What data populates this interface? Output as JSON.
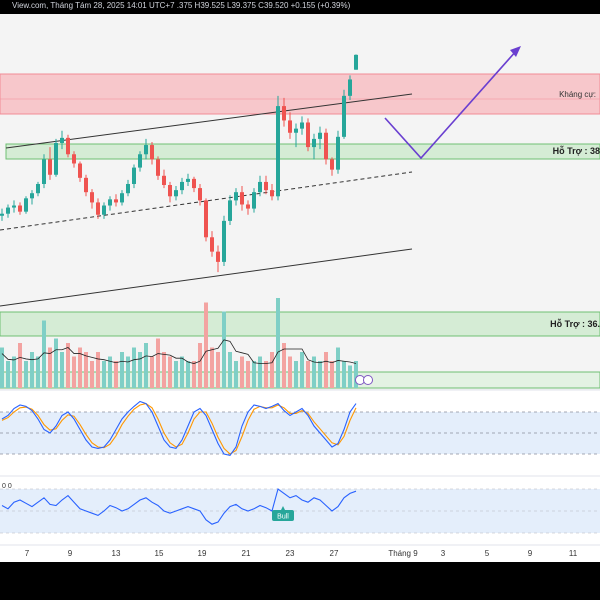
{
  "header": {
    "source_date": "View.com, Tháng Tám 28, 2025 14:01 UTC+7",
    "ohlc": {
      "o": ".375",
      "h": "H39.525",
      "l": "L39.375",
      "c": "C39.520",
      "chg": "+0.155 (+0.39%)"
    }
  },
  "levels": {
    "resistance_label": "Kháng cự:",
    "support1_label": "Hỗ Trợ : 38",
    "support2_label": "Hỗ Trợ : 36."
  },
  "badges": {
    "bull": "Bull",
    "oscillator_value": "0 0"
  },
  "colors": {
    "up": "#26a69a",
    "down": "#ef5350",
    "resistance_fill": "#f7c7cb",
    "support_fill": "#d5ecd5",
    "stoch_k": "#2962ff",
    "stoch_d": "#ff9800",
    "rsi": "#2962ff",
    "projection": "#6a3fd0"
  },
  "chart_data": {
    "type": "candlestick",
    "x_ticks": [
      "7",
      "9",
      "13",
      "15",
      "19",
      "21",
      "23",
      "27",
      "Tháng 9",
      "3",
      "5",
      "9",
      "11"
    ],
    "candles": [
      [
        37.95,
        38.02,
        37.9,
        37.97
      ],
      [
        37.97,
        38.06,
        37.93,
        38.03
      ],
      [
        38.03,
        38.1,
        37.98,
        38.05
      ],
      [
        38.05,
        38.08,
        37.96,
        37.99
      ],
      [
        37.99,
        38.14,
        37.97,
        38.12
      ],
      [
        38.12,
        38.2,
        38.06,
        38.17
      ],
      [
        38.17,
        38.28,
        38.14,
        38.26
      ],
      [
        38.26,
        38.55,
        38.22,
        38.5
      ],
      [
        38.5,
        38.62,
        38.3,
        38.35
      ],
      [
        38.35,
        38.7,
        38.33,
        38.66
      ],
      [
        38.66,
        38.78,
        38.6,
        38.71
      ],
      [
        38.71,
        38.74,
        38.52,
        38.55
      ],
      [
        38.55,
        38.58,
        38.42,
        38.46
      ],
      [
        38.46,
        38.48,
        38.28,
        38.32
      ],
      [
        38.32,
        38.35,
        38.14,
        38.18
      ],
      [
        38.18,
        38.21,
        38.02,
        38.08
      ],
      [
        38.08,
        38.12,
        37.92,
        37.96
      ],
      [
        37.96,
        38.08,
        37.92,
        38.05
      ],
      [
        38.05,
        38.14,
        38.0,
        38.11
      ],
      [
        38.11,
        38.16,
        38.04,
        38.08
      ],
      [
        38.08,
        38.2,
        38.05,
        38.17
      ],
      [
        38.17,
        38.3,
        38.14,
        38.26
      ],
      [
        38.26,
        38.45,
        38.22,
        38.42
      ],
      [
        38.42,
        38.58,
        38.38,
        38.55
      ],
      [
        38.55,
        38.7,
        38.5,
        38.64
      ],
      [
        38.64,
        38.67,
        38.45,
        38.5
      ],
      [
        38.5,
        38.53,
        38.3,
        38.34
      ],
      [
        38.34,
        38.4,
        38.22,
        38.25
      ],
      [
        38.25,
        38.28,
        38.08,
        38.14
      ],
      [
        38.14,
        38.24,
        38.1,
        38.2
      ],
      [
        38.2,
        38.32,
        38.16,
        38.28
      ],
      [
        38.28,
        38.36,
        38.24,
        38.31
      ],
      [
        38.31,
        38.33,
        38.18,
        38.22
      ],
      [
        38.22,
        38.26,
        38.05,
        38.1
      ],
      [
        38.1,
        38.12,
        37.7,
        37.74
      ],
      [
        37.74,
        37.8,
        37.55,
        37.6
      ],
      [
        37.6,
        37.66,
        37.4,
        37.5
      ],
      [
        37.5,
        37.95,
        37.46,
        37.9
      ],
      [
        37.9,
        38.15,
        37.86,
        38.1
      ],
      [
        38.1,
        38.22,
        38.05,
        38.18
      ],
      [
        38.18,
        38.24,
        38.0,
        38.06
      ],
      [
        38.06,
        38.1,
        37.96,
        38.02
      ],
      [
        38.02,
        38.22,
        37.98,
        38.18
      ],
      [
        38.18,
        38.34,
        38.14,
        38.28
      ],
      [
        38.28,
        38.34,
        38.16,
        38.2
      ],
      [
        38.2,
        38.26,
        38.1,
        38.14
      ],
      [
        38.14,
        39.12,
        38.1,
        39.02
      ],
      [
        39.02,
        39.1,
        38.82,
        38.88
      ],
      [
        38.88,
        38.96,
        38.7,
        38.76
      ],
      [
        38.76,
        38.85,
        38.62,
        38.8
      ],
      [
        38.8,
        38.92,
        38.74,
        38.86
      ],
      [
        38.86,
        38.9,
        38.58,
        38.62
      ],
      [
        38.62,
        38.75,
        38.5,
        38.7
      ],
      [
        38.7,
        38.82,
        38.6,
        38.76
      ],
      [
        38.76,
        38.8,
        38.45,
        38.5
      ],
      [
        38.5,
        38.52,
        38.34,
        38.4
      ],
      [
        38.4,
        38.78,
        38.36,
        38.72
      ],
      [
        38.72,
        39.18,
        38.7,
        39.12
      ],
      [
        39.12,
        39.32,
        39.08,
        39.28
      ],
      [
        39.375,
        39.525,
        39.375,
        39.52
      ]
    ],
    "volume": [
      0.45,
      0.3,
      0.35,
      0.5,
      0.3,
      0.4,
      0.35,
      0.75,
      0.45,
      0.55,
      0.4,
      0.5,
      0.35,
      0.45,
      0.4,
      0.3,
      0.4,
      0.3,
      0.35,
      0.3,
      0.4,
      0.35,
      0.45,
      0.4,
      0.5,
      0.35,
      0.55,
      0.4,
      0.35,
      0.3,
      0.35,
      0.3,
      0.3,
      0.5,
      0.95,
      0.45,
      0.4,
      0.85,
      0.4,
      0.3,
      0.35,
      0.3,
      0.3,
      0.35,
      0.3,
      0.4,
      1.0,
      0.5,
      0.35,
      0.3,
      0.4,
      0.3,
      0.35,
      0.3,
      0.4,
      0.3,
      0.45,
      0.3,
      0.25,
      0.3
    ],
    "stoch_k": [
      70,
      75,
      85,
      90,
      88,
      82,
      70,
      55,
      50,
      60,
      75,
      80,
      70,
      55,
      40,
      30,
      28,
      30,
      40,
      55,
      70,
      80,
      88,
      95,
      92,
      80,
      60,
      40,
      30,
      28,
      40,
      60,
      80,
      85,
      75,
      55,
      35,
      20,
      18,
      30,
      60,
      80,
      90,
      88,
      85,
      88,
      92,
      82,
      75,
      80,
      85,
      75,
      60,
      50,
      40,
      30,
      35,
      55,
      80,
      92
    ],
    "stoch_d": [
      68,
      72,
      80,
      86,
      87,
      84,
      75,
      62,
      54,
      56,
      68,
      76,
      74,
      62,
      48,
      36,
      30,
      29,
      34,
      46,
      62,
      74,
      84,
      90,
      92,
      86,
      70,
      50,
      36,
      30,
      34,
      50,
      70,
      80,
      80,
      64,
      44,
      28,
      20,
      25,
      45,
      68,
      84,
      88,
      86,
      86,
      90,
      86,
      78,
      78,
      82,
      78,
      66,
      56,
      46,
      36,
      33,
      45,
      68,
      86
    ],
    "rsi": [
      55,
      52,
      58,
      60,
      57,
      54,
      58,
      62,
      56,
      55,
      60,
      64,
      58,
      52,
      50,
      48,
      46,
      50,
      55,
      53,
      50,
      52,
      56,
      60,
      62,
      58,
      55,
      50,
      48,
      50,
      52,
      54,
      52,
      50,
      42,
      38,
      40,
      48,
      54,
      56,
      52,
      50,
      52,
      55,
      53,
      50,
      70,
      66,
      62,
      64,
      60,
      58,
      62,
      60,
      55,
      50,
      54,
      62,
      66,
      68
    ],
    "y_range_price": [
      37.05,
      39.86
    ]
  }
}
